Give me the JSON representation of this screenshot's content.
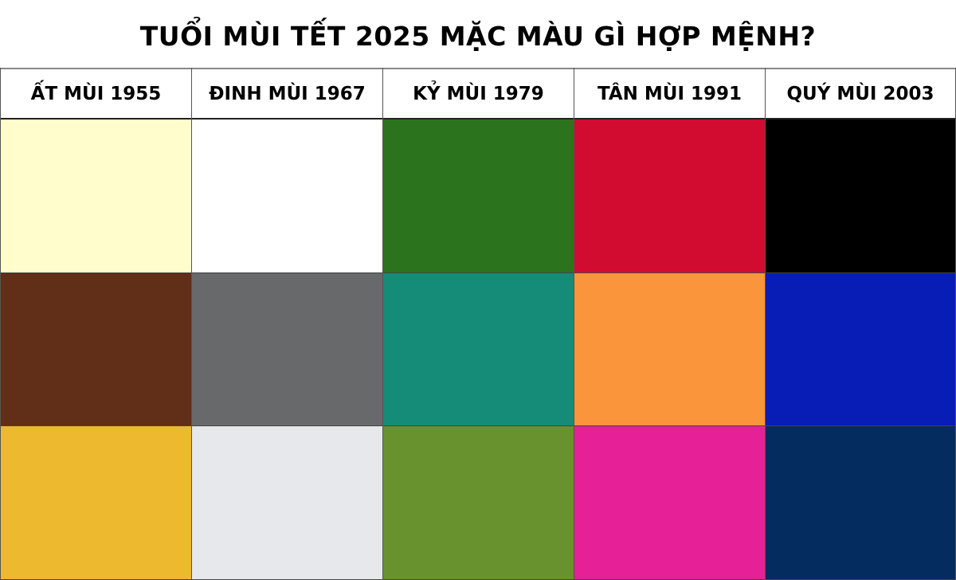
{
  "title": "TUỔI MÙI TẾT 2025 MẶC MÀU GÌ HỢP MỆNH?",
  "columns": [
    {
      "label": "ẤT MÙI 1955",
      "colors": [
        "#FEFDCB",
        "#612E17",
        "#EDB92E"
      ]
    },
    {
      "label": "ĐINH MÙI 1967",
      "colors": [
        "#FFFFFF",
        "#68696B",
        "#E7E8EB"
      ]
    },
    {
      "label": "KỶ MÙI 1979",
      "colors": [
        "#2C731E",
        "#158C78",
        "#68922E"
      ]
    },
    {
      "label": "TÂN MÙI 1991",
      "colors": [
        "#D20B30",
        "#FA953C",
        "#E62097"
      ]
    },
    {
      "label": "QUÝ MÙI 2003",
      "colors": [
        "#000000",
        "#081CB6",
        "#052C5E"
      ]
    }
  ]
}
